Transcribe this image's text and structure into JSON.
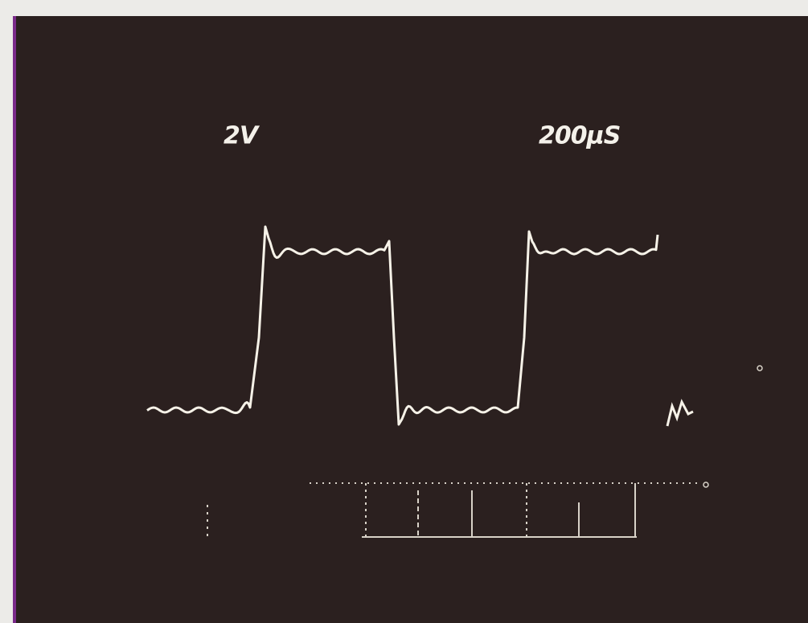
{
  "labels": {
    "volts_per_div": "2V",
    "time_per_div": "200µS"
  }
}
